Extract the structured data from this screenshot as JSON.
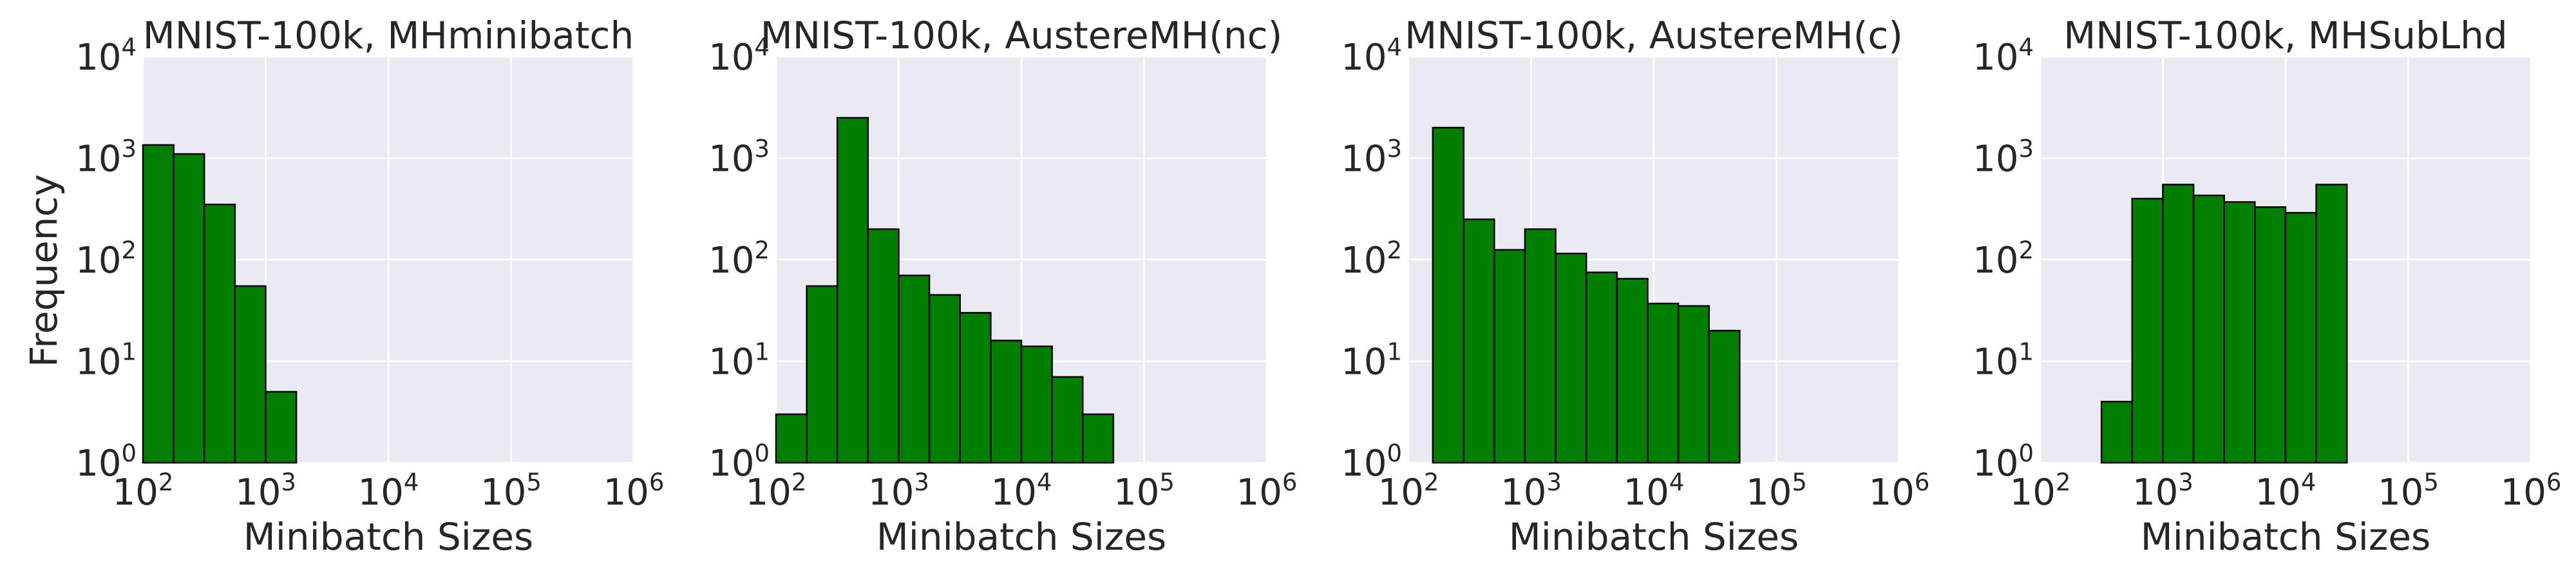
{
  "ylabel": "Frequency",
  "colors": {
    "bar": "#007f00",
    "edge": "#000000",
    "background": "#eaeaf2",
    "grid": "#ffffff"
  },
  "chart_data": [
    {
      "type": "bar",
      "title": "MNIST-100k, MHminibatch",
      "xlabel": "Minibatch Sizes",
      "ylabel": "Frequency",
      "xscale": "log",
      "yscale": "log",
      "xlim": [
        100,
        1000000
      ],
      "ylim": [
        1,
        10000
      ],
      "xticks": [
        "10",
        "10",
        "10",
        "10",
        "10"
      ],
      "xtick_exponents": [
        "2",
        "3",
        "4",
        "5",
        "6"
      ],
      "yticks": [
        "10",
        "10",
        "10",
        "10",
        "10"
      ],
      "ytick_exponents": [
        "0",
        "1",
        "2",
        "3",
        "4"
      ],
      "grid": true,
      "bins": [
        {
          "x0": 100,
          "x1": 178,
          "count": 1350
        },
        {
          "x0": 178,
          "x1": 316,
          "count": 1100
        },
        {
          "x0": 316,
          "x1": 562,
          "count": 350
        },
        {
          "x0": 562,
          "x1": 1000,
          "count": 55
        },
        {
          "x0": 1000,
          "x1": 1778,
          "count": 5
        },
        {
          "x0": 1778,
          "x1": 3162,
          "count": 1
        }
      ]
    },
    {
      "type": "bar",
      "title": "MNIST-100k, AustereMH(nc)",
      "xlabel": "Minibatch Sizes",
      "xscale": "log",
      "yscale": "log",
      "xlim": [
        100,
        1000000
      ],
      "ylim": [
        1,
        10000
      ],
      "xticks": [
        "10",
        "10",
        "10",
        "10",
        "10"
      ],
      "xtick_exponents": [
        "2",
        "3",
        "4",
        "5",
        "6"
      ],
      "yticks": [
        "10",
        "10",
        "10",
        "10",
        "10"
      ],
      "ytick_exponents": [
        "0",
        "1",
        "2",
        "3",
        "4"
      ],
      "grid": true,
      "bins": [
        {
          "x0": 100,
          "x1": 178,
          "count": 3
        },
        {
          "x0": 178,
          "x1": 316,
          "count": 55
        },
        {
          "x0": 316,
          "x1": 562,
          "count": 2500
        },
        {
          "x0": 562,
          "x1": 1000,
          "count": 200
        },
        {
          "x0": 1000,
          "x1": 1778,
          "count": 70
        },
        {
          "x0": 1778,
          "x1": 3162,
          "count": 45
        },
        {
          "x0": 3162,
          "x1": 5623,
          "count": 30
        },
        {
          "x0": 5623,
          "x1": 10000,
          "count": 16
        },
        {
          "x0": 10000,
          "x1": 17783,
          "count": 14
        },
        {
          "x0": 17783,
          "x1": 31623,
          "count": 7
        },
        {
          "x0": 31623,
          "x1": 56234,
          "count": 3
        }
      ]
    },
    {
      "type": "bar",
      "title": "MNIST-100k, AustereMH(c)",
      "xlabel": "Minibatch Sizes",
      "xscale": "log",
      "yscale": "log",
      "xlim": [
        100,
        1000000
      ],
      "ylim": [
        1,
        10000
      ],
      "xticks": [
        "10",
        "10",
        "10",
        "10",
        "10"
      ],
      "xtick_exponents": [
        "2",
        "3",
        "4",
        "5",
        "6"
      ],
      "yticks": [
        "10",
        "10",
        "10",
        "10",
        "10"
      ],
      "ytick_exponents": [
        "0",
        "1",
        "2",
        "3",
        "4"
      ],
      "grid": true,
      "bins": [
        {
          "x0": 158,
          "x1": 282,
          "count": 2000
        },
        {
          "x0": 282,
          "x1": 501,
          "count": 250
        },
        {
          "x0": 501,
          "x1": 891,
          "count": 125
        },
        {
          "x0": 891,
          "x1": 1585,
          "count": 200
        },
        {
          "x0": 1585,
          "x1": 2818,
          "count": 115
        },
        {
          "x0": 2818,
          "x1": 5012,
          "count": 75
        },
        {
          "x0": 5012,
          "x1": 8913,
          "count": 65
        },
        {
          "x0": 8913,
          "x1": 15849,
          "count": 37
        },
        {
          "x0": 15849,
          "x1": 28184,
          "count": 35
        },
        {
          "x0": 28184,
          "x1": 50119,
          "count": 20
        }
      ]
    },
    {
      "type": "bar",
      "title": "MNIST-100k, MHSubLhd",
      "xlabel": "Minibatch Sizes",
      "xscale": "log",
      "yscale": "log",
      "xlim": [
        100,
        1000000
      ],
      "ylim": [
        1,
        10000
      ],
      "xticks": [
        "10",
        "10",
        "10",
        "10",
        "10"
      ],
      "xtick_exponents": [
        "2",
        "3",
        "4",
        "5",
        "6"
      ],
      "yticks": [
        "10",
        "10",
        "10",
        "10",
        "10"
      ],
      "ytick_exponents": [
        "0",
        "1",
        "2",
        "3",
        "4"
      ],
      "grid": true,
      "bins": [
        {
          "x0": 316,
          "x1": 562,
          "count": 4
        },
        {
          "x0": 562,
          "x1": 1000,
          "count": 400
        },
        {
          "x0": 1000,
          "x1": 1778,
          "count": 550
        },
        {
          "x0": 1778,
          "x1": 3162,
          "count": 430
        },
        {
          "x0": 3162,
          "x1": 5623,
          "count": 370
        },
        {
          "x0": 5623,
          "x1": 10000,
          "count": 330
        },
        {
          "x0": 10000,
          "x1": 17783,
          "count": 290
        },
        {
          "x0": 17783,
          "x1": 31623,
          "count": 550
        }
      ]
    }
  ]
}
